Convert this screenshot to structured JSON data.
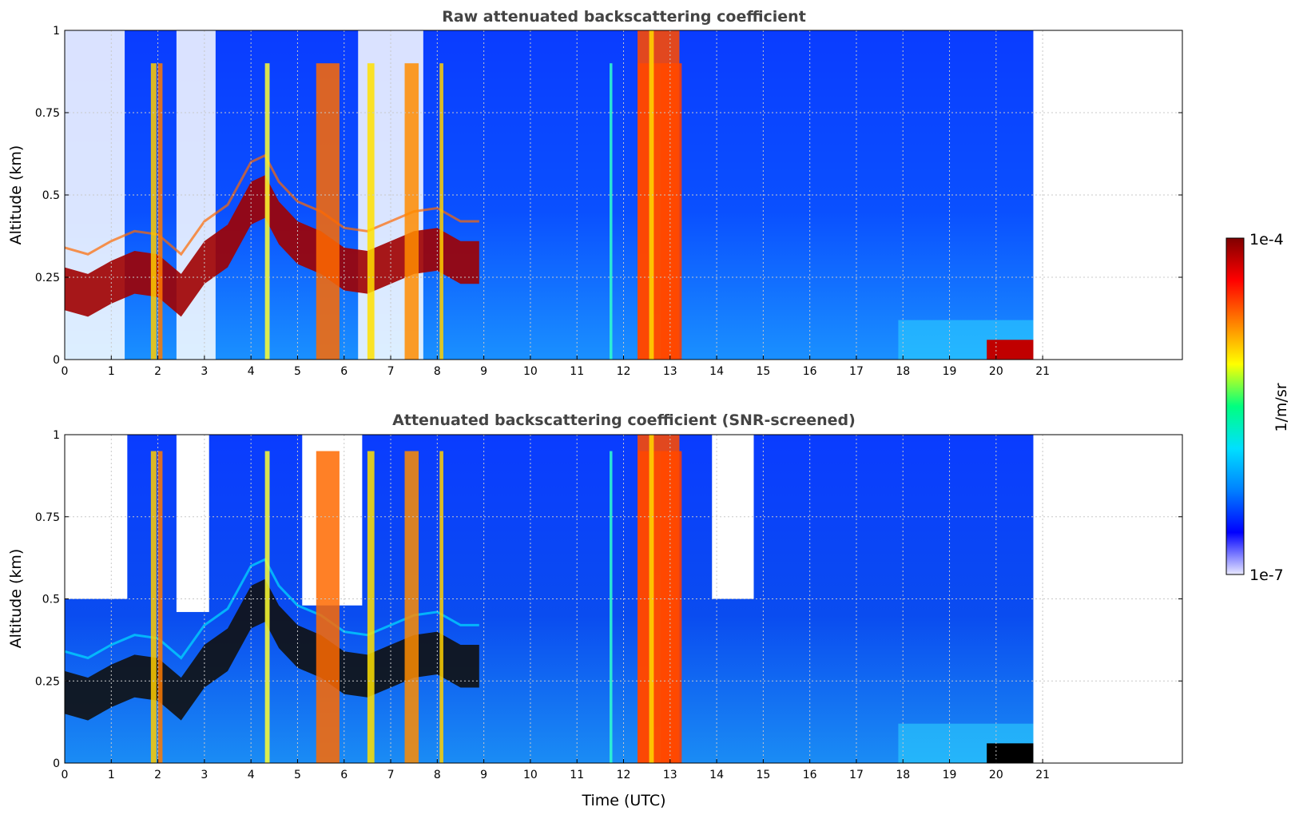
{
  "chart_data": [
    {
      "type": "heatmap",
      "title": "Raw attenuated backscattering coefficient",
      "xlabel": "",
      "ylabel": "Altitude (km)",
      "xlim": [
        0,
        24
      ],
      "ylim": [
        0,
        1
      ],
      "x_ticks": [
        "0",
        "1",
        "2",
        "3",
        "4",
        "5",
        "6",
        "7",
        "8",
        "9",
        "10",
        "11",
        "12",
        "13",
        "14",
        "15",
        "16",
        "17",
        "18",
        "19",
        "20",
        "21"
      ],
      "y_ticks": [
        "0",
        "0.25",
        "0.5",
        "0.75",
        "1"
      ],
      "data_x_range": [
        0,
        20.8
      ],
      "grid": true,
      "features": [
        {
          "kind": "boundary_layer_top",
          "x": [
            0,
            1,
            2,
            3,
            4,
            5,
            6,
            7,
            8,
            8.9
          ],
          "y": [
            0.22,
            0.24,
            0.25,
            0.26,
            0.5,
            0.36,
            0.28,
            0.3,
            0.34,
            0.3
          ]
        },
        {
          "kind": "dense_layer",
          "x_range": [
            12.3,
            13.2
          ],
          "y_range": [
            0,
            1
          ]
        },
        {
          "kind": "near_ground_signal",
          "x_range": [
            19.5,
            20.8
          ],
          "y_range": [
            0,
            0.08
          ]
        }
      ]
    },
    {
      "type": "heatmap",
      "title": "Attenuated backscattering coefficient (SNR-screened)",
      "xlabel": "Time (UTC)",
      "ylabel": "Altitude (km)",
      "xlim": [
        0,
        24
      ],
      "ylim": [
        0,
        1
      ],
      "x_ticks": [
        "0",
        "1",
        "2",
        "3",
        "4",
        "5",
        "6",
        "7",
        "8",
        "9",
        "10",
        "11",
        "12",
        "13",
        "14",
        "15",
        "16",
        "17",
        "18",
        "19",
        "20",
        "21"
      ],
      "y_ticks": [
        "0",
        "0.25",
        "0.5",
        "0.75",
        "1"
      ],
      "data_x_range": [
        0,
        20.8
      ],
      "grid": true
    }
  ],
  "colorbar": {
    "label": "1/m/sr",
    "max_label": "1e-4",
    "min_label": "1e-7",
    "scale": "log",
    "colormap": "jet",
    "colors": [
      "#e8e8ff",
      "#0000ff",
      "#0080ff",
      "#00e0ff",
      "#00ff80",
      "#ffff00",
      "#ff8000",
      "#ff0000",
      "#800000"
    ]
  }
}
